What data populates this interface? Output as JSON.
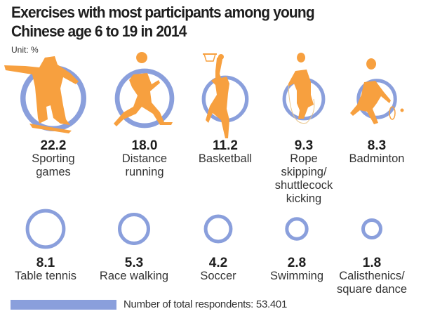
{
  "chart_data": {
    "type": "bubble",
    "title": "Exercises with most participants among young Chinese age 6 to 19 in 2014",
    "title_lines": [
      "Exercises with most participants among young",
      "Chinese age 6 to 19 in 2014"
    ],
    "unit": "Unit: %",
    "ring_color": "#8A9FDC",
    "figure_color": "#F7A03F",
    "items": [
      {
        "value": "22.2",
        "label_lines": [
          "Sporting",
          "games"
        ],
        "icon": "skateboarder-icon"
      },
      {
        "value": "18.0",
        "label_lines": [
          "Distance",
          "running"
        ],
        "icon": "runner-icon"
      },
      {
        "value": "11.2",
        "label_lines": [
          "Basketball"
        ],
        "icon": "basketball-player-icon"
      },
      {
        "value": "9.3",
        "label_lines": [
          "Rope",
          "skipping/",
          "shuttlecock",
          "kicking"
        ],
        "icon": "rope-skipper-icon"
      },
      {
        "value": "8.3",
        "label_lines": [
          "Badminton"
        ],
        "icon": "badminton-player-icon"
      },
      {
        "value": "8.1",
        "label_lines": [
          "Table tennis"
        ],
        "icon": null
      },
      {
        "value": "5.3",
        "label_lines": [
          "Race walking"
        ],
        "icon": null
      },
      {
        "value": "4.2",
        "label_lines": [
          "Soccer"
        ],
        "icon": null
      },
      {
        "value": "2.8",
        "label_lines": [
          "Swimming"
        ],
        "icon": null
      },
      {
        "value": "1.8",
        "label_lines": [
          "Calisthenics/",
          "square dance"
        ],
        "icon": null
      }
    ],
    "legend": {
      "text": "Number of total respondents: 53.401"
    }
  }
}
